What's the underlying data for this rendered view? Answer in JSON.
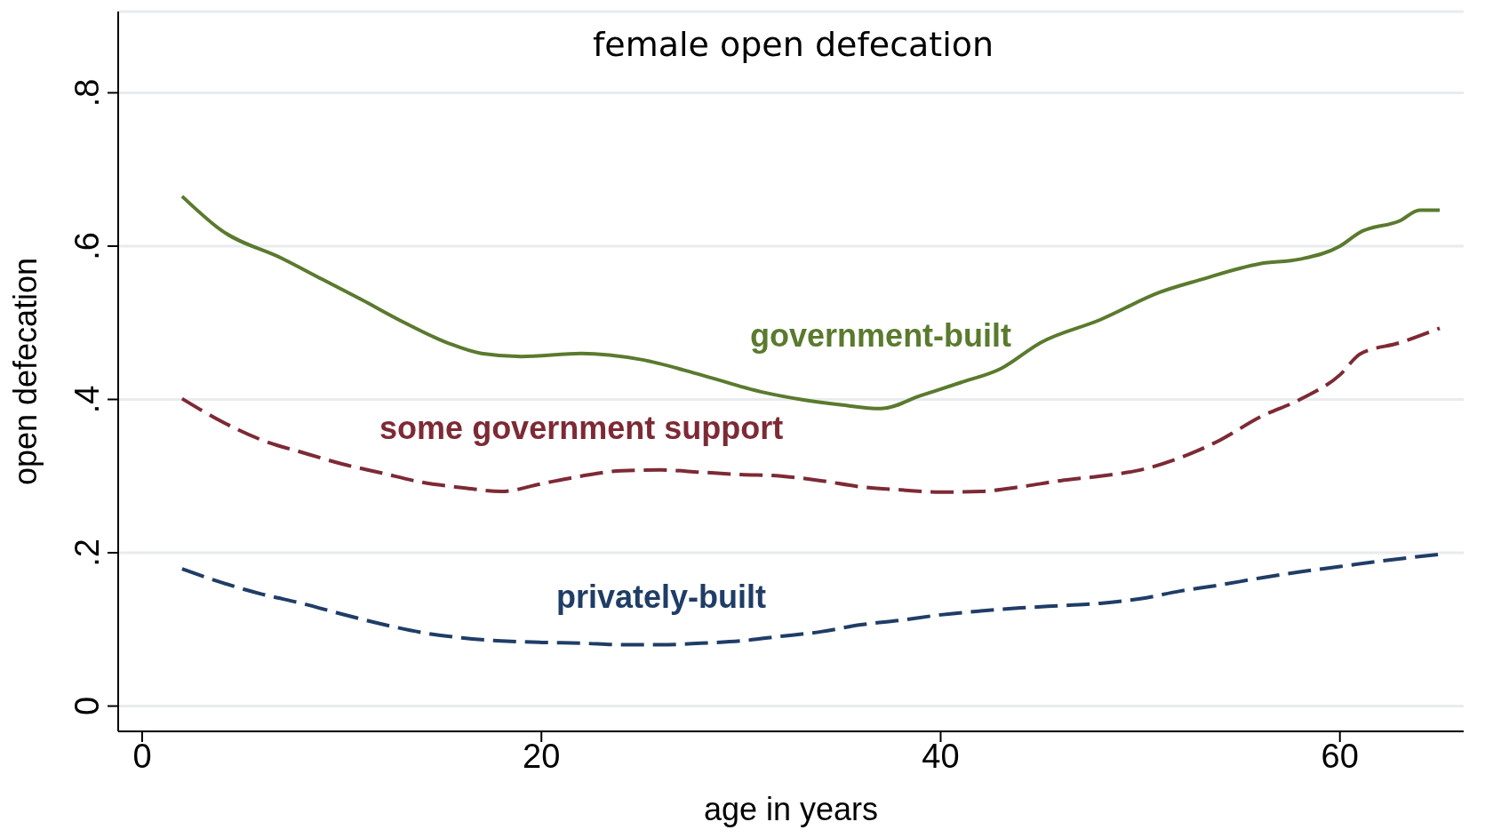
{
  "chart_data": {
    "type": "line",
    "title": "female open defecation",
    "xlabel": "age in years",
    "ylabel": "open defecation",
    "xlim": [
      -1.2,
      66.2
    ],
    "ylim": [
      -0.033,
      0.906
    ],
    "xticks": [
      0,
      20,
      40,
      60
    ],
    "yticks": [
      0,
      {
        "value": 0.2,
        "label": ".2"
      },
      {
        "value": 0.4,
        "label": ".4"
      },
      {
        "value": 0.6,
        "label": ".6"
      },
      {
        "value": 0.8,
        "label": ".8"
      }
    ],
    "grid": "y",
    "marker": "none",
    "series": [
      {
        "name": "government-built",
        "color": "#5a7a2e",
        "line_style": "solid",
        "x": [
          2,
          4,
          7,
          9,
          11,
          13,
          15,
          17,
          19,
          22,
          25,
          28,
          31,
          33,
          35,
          37,
          39,
          41,
          43,
          45,
          48,
          51,
          53,
          56,
          58,
          60,
          61,
          63,
          64,
          65
        ],
        "values": [
          0.665,
          0.62,
          0.584,
          0.557,
          0.53,
          0.502,
          0.477,
          0.46,
          0.456,
          0.46,
          0.452,
          0.432,
          0.41,
          0.4,
          0.393,
          0.388,
          0.405,
          0.422,
          0.44,
          0.474,
          0.504,
          0.54,
          0.556,
          0.577,
          0.583,
          0.6,
          0.618,
          0.633,
          0.647,
          0.647
        ]
      },
      {
        "name": "some government support",
        "color": "#7d2a35",
        "line_style": "dashed",
        "x": [
          2,
          4,
          6,
          8,
          10,
          12,
          14,
          16,
          18,
          20,
          22,
          24,
          26,
          28,
          30,
          32,
          34,
          36,
          38,
          40,
          42,
          44,
          46,
          48,
          50,
          52,
          54,
          56,
          58,
          60,
          61,
          63,
          65
        ],
        "values": [
          0.401,
          0.371,
          0.347,
          0.331,
          0.316,
          0.304,
          0.292,
          0.285,
          0.28,
          0.29,
          0.3,
          0.307,
          0.308,
          0.305,
          0.302,
          0.3,
          0.294,
          0.286,
          0.282,
          0.279,
          0.28,
          0.286,
          0.294,
          0.3,
          0.308,
          0.324,
          0.347,
          0.377,
          0.4,
          0.432,
          0.459,
          0.474,
          0.493
        ]
      },
      {
        "name": "privately-built",
        "color": "#1f3d66",
        "line_style": "dashed",
        "x": [
          2,
          4,
          6,
          8,
          10,
          12,
          14,
          16,
          18,
          20,
          22,
          24,
          26,
          28,
          30,
          32,
          34,
          36,
          38,
          40,
          42,
          44,
          46,
          48,
          50,
          52,
          54,
          56,
          58,
          60,
          62,
          65
        ],
        "values": [
          0.179,
          0.161,
          0.146,
          0.134,
          0.12,
          0.107,
          0.096,
          0.089,
          0.085,
          0.083,
          0.082,
          0.08,
          0.08,
          0.082,
          0.085,
          0.091,
          0.097,
          0.106,
          0.112,
          0.119,
          0.124,
          0.128,
          0.131,
          0.134,
          0.14,
          0.15,
          0.158,
          0.167,
          0.175,
          0.182,
          0.189,
          0.198
        ]
      }
    ]
  }
}
